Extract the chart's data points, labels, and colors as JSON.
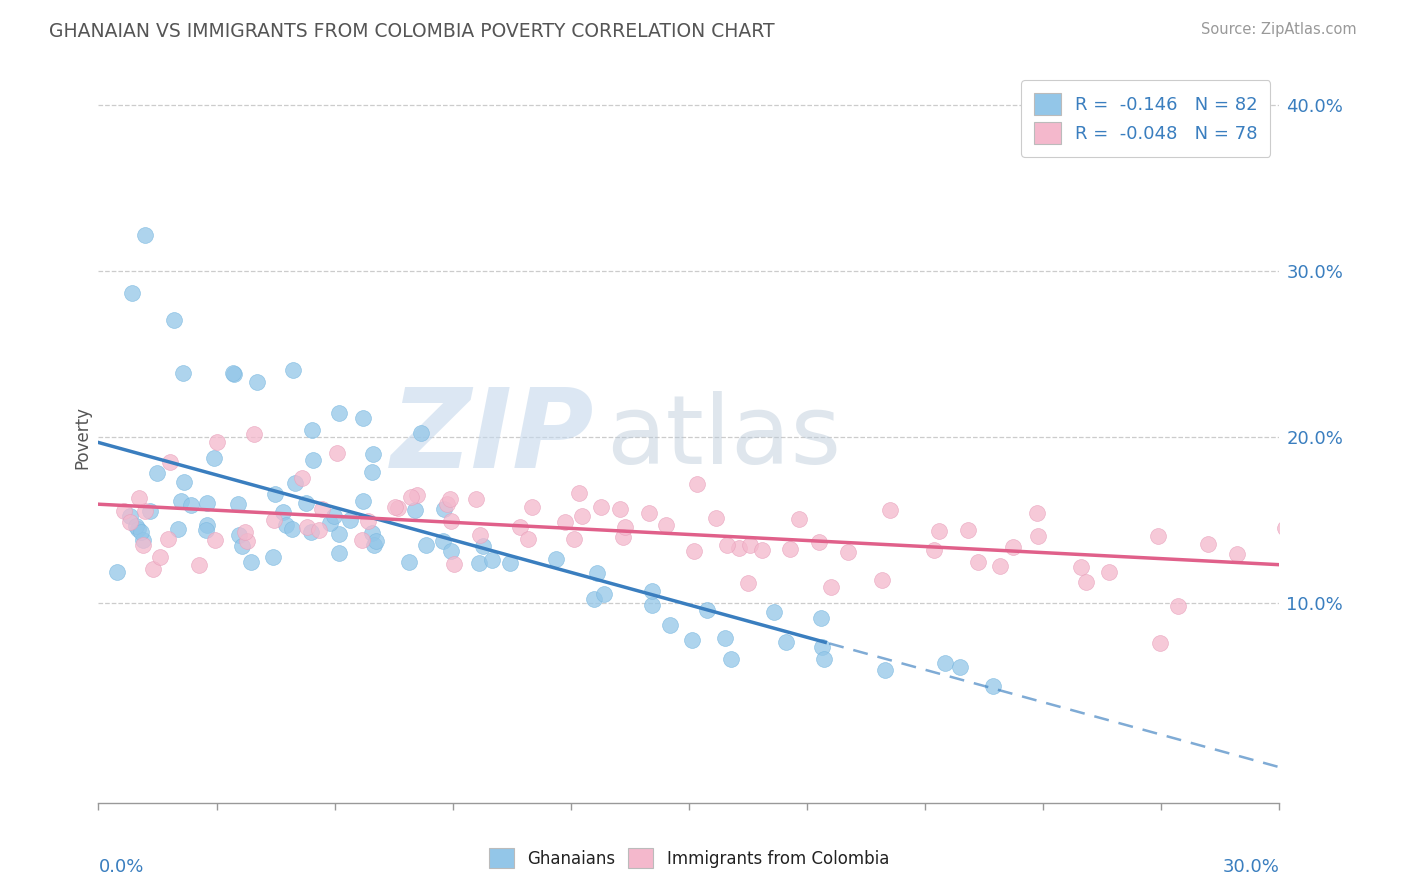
{
  "title": "GHANAIAN VS IMMIGRANTS FROM COLOMBIA POVERTY CORRELATION CHART",
  "source": "Source: ZipAtlas.com",
  "ylabel": "Poverty",
  "xlim": [
    0.0,
    0.3
  ],
  "ylim": [
    -0.02,
    0.42
  ],
  "yticks_right": [
    0.1,
    0.2,
    0.3,
    0.4
  ],
  "ytick_labels_right": [
    "10.0%",
    "20.0%",
    "30.0%",
    "40.0%"
  ],
  "blue_color": "#93c6e8",
  "pink_color": "#f4b8cc",
  "blue_line_color": "#3a7ebf",
  "pink_line_color": "#e0608a",
  "R1": -0.146,
  "N1": 82,
  "R2": -0.048,
  "N2": 78,
  "watermark_zip": "ZIP",
  "watermark_atlas": "atlas",
  "blue_x": [
    0.005,
    0.006,
    0.008,
    0.01,
    0.012,
    0.013,
    0.015,
    0.016,
    0.018,
    0.02,
    0.022,
    0.024,
    0.026,
    0.028,
    0.03,
    0.032,
    0.034,
    0.036,
    0.038,
    0.04,
    0.042,
    0.044,
    0.046,
    0.048,
    0.05,
    0.052,
    0.054,
    0.056,
    0.058,
    0.06,
    0.062,
    0.064,
    0.066,
    0.068,
    0.07,
    0.072,
    0.074,
    0.076,
    0.078,
    0.08,
    0.085,
    0.09,
    0.095,
    0.1,
    0.105,
    0.11,
    0.115,
    0.12,
    0.125,
    0.13,
    0.135,
    0.14,
    0.145,
    0.15,
    0.155,
    0.16,
    0.165,
    0.17,
    0.175,
    0.18,
    0.185,
    0.19,
    0.2,
    0.21,
    0.22,
    0.23,
    0.012,
    0.015,
    0.02,
    0.025,
    0.03,
    0.035,
    0.04,
    0.045,
    0.05,
    0.055,
    0.06,
    0.065,
    0.07,
    0.075,
    0.08,
    0.085
  ],
  "blue_y": [
    0.14,
    0.13,
    0.155,
    0.145,
    0.15,
    0.14,
    0.16,
    0.135,
    0.155,
    0.165,
    0.145,
    0.16,
    0.155,
    0.145,
    0.16,
    0.15,
    0.145,
    0.14,
    0.135,
    0.155,
    0.15,
    0.145,
    0.16,
    0.15,
    0.155,
    0.145,
    0.14,
    0.15,
    0.145,
    0.145,
    0.14,
    0.155,
    0.145,
    0.14,
    0.15,
    0.14,
    0.145,
    0.135,
    0.14,
    0.135,
    0.13,
    0.13,
    0.125,
    0.125,
    0.12,
    0.12,
    0.115,
    0.115,
    0.11,
    0.11,
    0.105,
    0.105,
    0.1,
    0.1,
    0.095,
    0.095,
    0.09,
    0.09,
    0.085,
    0.085,
    0.08,
    0.08,
    0.075,
    0.07,
    0.065,
    0.06,
    0.29,
    0.34,
    0.27,
    0.26,
    0.24,
    0.23,
    0.22,
    0.22,
    0.205,
    0.195,
    0.2,
    0.2,
    0.19,
    0.185,
    0.18,
    0.175
  ],
  "pink_x": [
    0.005,
    0.008,
    0.01,
    0.012,
    0.015,
    0.018,
    0.02,
    0.025,
    0.03,
    0.035,
    0.04,
    0.045,
    0.05,
    0.055,
    0.06,
    0.065,
    0.07,
    0.075,
    0.08,
    0.085,
    0.09,
    0.095,
    0.1,
    0.105,
    0.11,
    0.115,
    0.12,
    0.125,
    0.13,
    0.135,
    0.14,
    0.145,
    0.15,
    0.155,
    0.16,
    0.165,
    0.17,
    0.175,
    0.18,
    0.19,
    0.2,
    0.21,
    0.22,
    0.23,
    0.24,
    0.25,
    0.26,
    0.27,
    0.28,
    0.29,
    0.3,
    0.012,
    0.02,
    0.03,
    0.04,
    0.05,
    0.06,
    0.07,
    0.08,
    0.09,
    0.1,
    0.11,
    0.12,
    0.13,
    0.14,
    0.15,
    0.16,
    0.17,
    0.18,
    0.19,
    0.2,
    0.21,
    0.22,
    0.23,
    0.24,
    0.25,
    0.27,
    0.28
  ],
  "pink_y": [
    0.14,
    0.135,
    0.14,
    0.135,
    0.14,
    0.135,
    0.14,
    0.14,
    0.14,
    0.14,
    0.145,
    0.145,
    0.145,
    0.145,
    0.15,
    0.15,
    0.15,
    0.15,
    0.15,
    0.15,
    0.145,
    0.145,
    0.145,
    0.145,
    0.145,
    0.145,
    0.145,
    0.145,
    0.14,
    0.14,
    0.14,
    0.14,
    0.14,
    0.14,
    0.14,
    0.14,
    0.14,
    0.14,
    0.14,
    0.135,
    0.135,
    0.135,
    0.135,
    0.135,
    0.135,
    0.135,
    0.135,
    0.13,
    0.13,
    0.13,
    0.13,
    0.175,
    0.19,
    0.185,
    0.18,
    0.175,
    0.17,
    0.165,
    0.16,
    0.165,
    0.16,
    0.155,
    0.155,
    0.16,
    0.155,
    0.155,
    0.15,
    0.15,
    0.145,
    0.145,
    0.14,
    0.14,
    0.135,
    0.13,
    0.12,
    0.12,
    0.085,
    0.095
  ]
}
